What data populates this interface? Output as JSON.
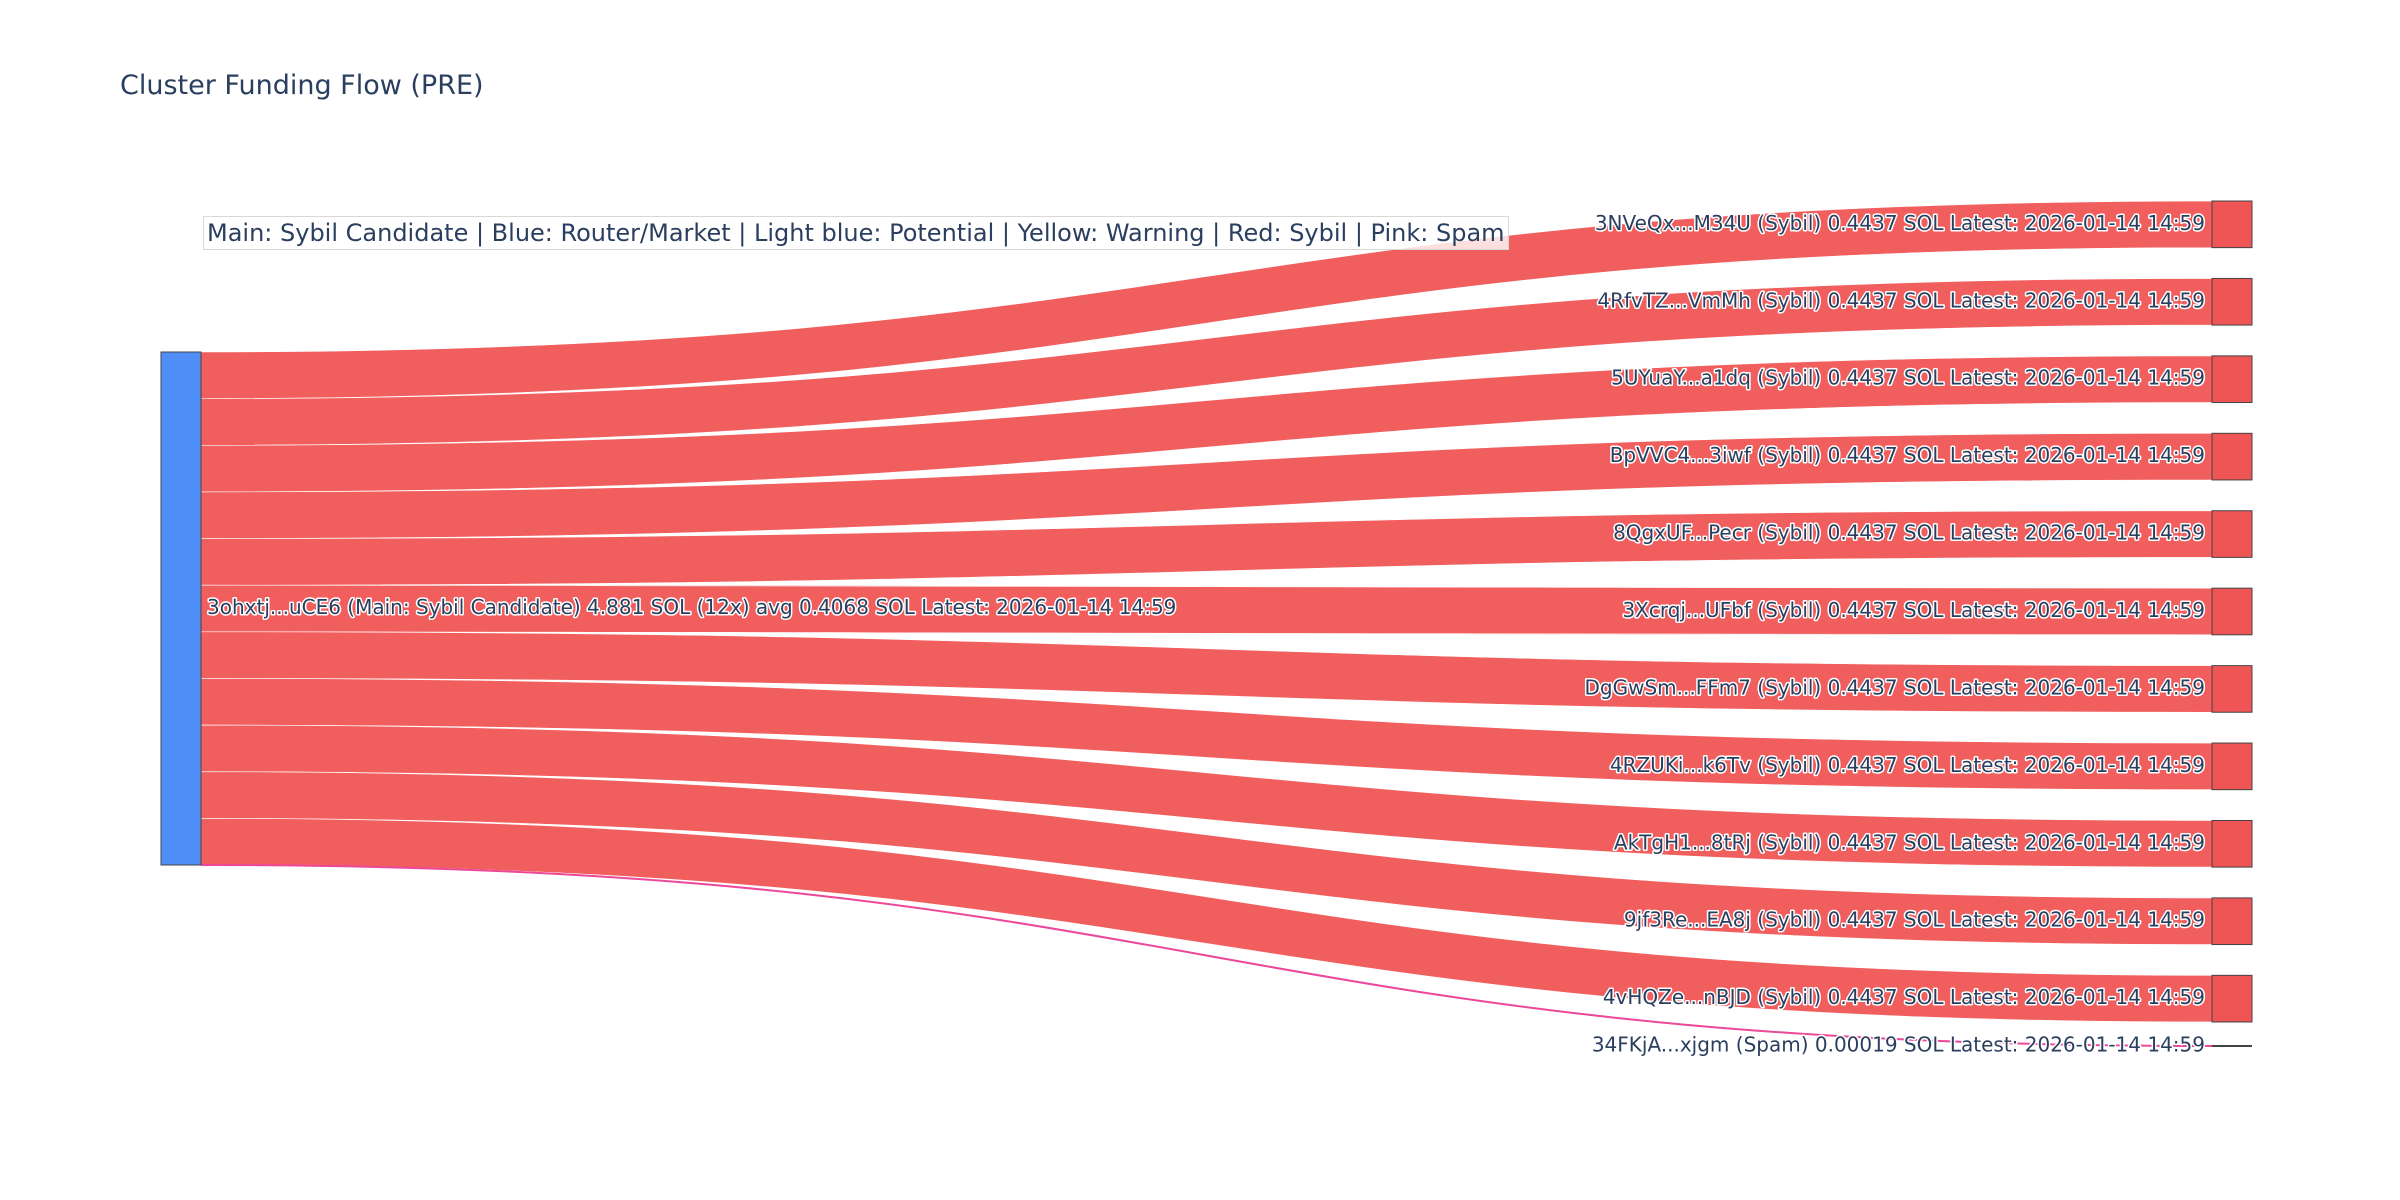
{
  "title": "Cluster Funding Flow (PRE)",
  "legend_note": "Main: Sybil Candidate  |  Blue: Router/Market | Light blue: Potential | Yellow: Warning | Red: Sybil | Pink: Spam",
  "colors": {
    "main": "#4f8ef7",
    "sybil": "#f05555",
    "spam": "#ec4899",
    "text": "#2a3f5f"
  },
  "chart_data": {
    "type": "sankey",
    "title": "Cluster Funding Flow (PRE)",
    "source": {
      "label": "3ohxtj...uCE6 (Main: Sybil Candidate) 4.881 SOL (12x) avg 0.4068 SOL Latest: 2026-01-14 14:59",
      "role": "Main: Sybil Candidate",
      "total": 4.881
    },
    "targets": [
      {
        "label": "3NVeQx...M34U (Sybil) 0.4437 SOL Latest: 2026-01-14 14:59",
        "value": 0.4437,
        "type": "sybil"
      },
      {
        "label": "4RfvTZ...VmMh (Sybil) 0.4437 SOL Latest: 2026-01-14 14:59",
        "value": 0.4437,
        "type": "sybil"
      },
      {
        "label": "5UYuaY...a1dq (Sybil) 0.4437 SOL Latest: 2026-01-14 14:59",
        "value": 0.4437,
        "type": "sybil"
      },
      {
        "label": "BpVVC4...3iwf (Sybil) 0.4437 SOL Latest: 2026-01-14 14:59",
        "value": 0.4437,
        "type": "sybil"
      },
      {
        "label": "8QgxUF...Pecr (Sybil) 0.4437 SOL Latest: 2026-01-14 14:59",
        "value": 0.4437,
        "type": "sybil"
      },
      {
        "label": "3Xcrqj...UFbf (Sybil) 0.4437 SOL Latest: 2026-01-14 14:59",
        "value": 0.4437,
        "type": "sybil"
      },
      {
        "label": "DgGwSm...FFm7 (Sybil) 0.4437 SOL Latest: 2026-01-14 14:59",
        "value": 0.4437,
        "type": "sybil"
      },
      {
        "label": "4RZUKi...k6Tv (Sybil) 0.4437 SOL Latest: 2026-01-14 14:59",
        "value": 0.4437,
        "type": "sybil"
      },
      {
        "label": "AkTgH1...8tRj (Sybil) 0.4437 SOL Latest: 2026-01-14 14:59",
        "value": 0.4437,
        "type": "sybil"
      },
      {
        "label": "9jf3Re...EA8j (Sybil) 0.4437 SOL Latest: 2026-01-14 14:59",
        "value": 0.4437,
        "type": "sybil"
      },
      {
        "label": "4vHQZe...nBJD (Sybil) 0.4437 SOL Latest: 2026-01-14 14:59",
        "value": 0.4437,
        "type": "sybil"
      },
      {
        "label": "34FKjA...xjgm (Spam) 0.00019 SOL Latest: 2026-01-14 14:59",
        "value": 0.00019,
        "type": "spam"
      }
    ]
  }
}
